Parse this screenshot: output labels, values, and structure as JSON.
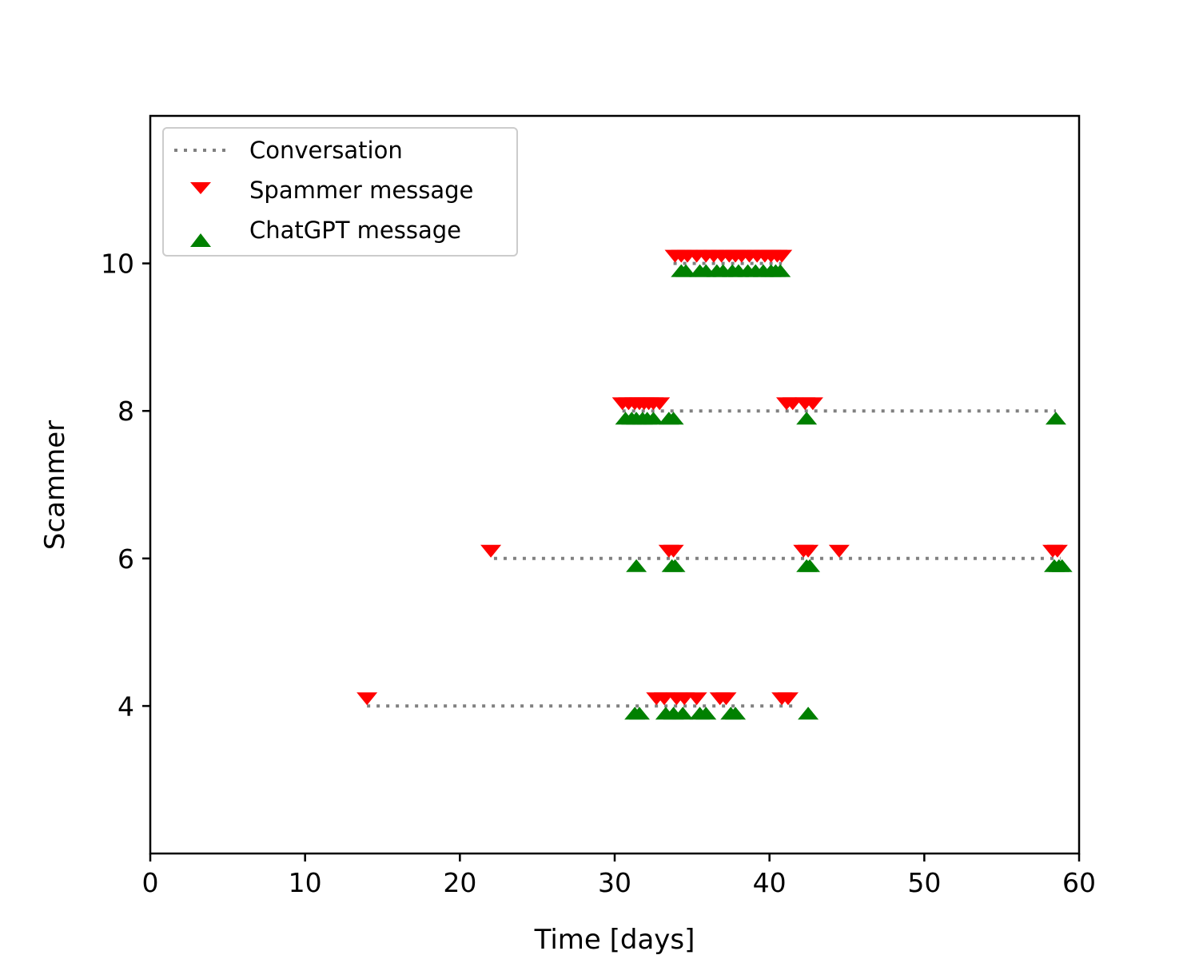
{
  "chart_data": {
    "type": "scatter",
    "xlabel": "Time [days]",
    "ylabel": "Scammer",
    "xlim": [
      0,
      60
    ],
    "ylim": [
      2,
      12
    ],
    "xticks": [
      0,
      10,
      20,
      30,
      40,
      50,
      60
    ],
    "yticks": [
      4,
      6,
      8,
      10
    ],
    "grid": false,
    "legend_position": "top-left",
    "legend": [
      {
        "label": "Conversation",
        "marker": "dotted-line",
        "color": "#808080"
      },
      {
        "label": "Spammer message",
        "marker": "triangle-down",
        "color": "#ff0000"
      },
      {
        "label": "ChatGPT message",
        "marker": "triangle-up",
        "color": "#008000"
      }
    ],
    "conversations": [
      {
        "scammer": 4,
        "start": 14.0,
        "end": 41.5
      },
      {
        "scammer": 6,
        "start": 22.2,
        "end": 58.8
      },
      {
        "scammer": 8,
        "start": 30.5,
        "end": 58.5
      },
      {
        "scammer": 10,
        "start": 33.8,
        "end": 40.8
      }
    ],
    "series": [
      {
        "name": "Spammer message",
        "color": "#ff0000",
        "points": [
          {
            "scammer": 4,
            "t": [
              14.0,
              32.7,
              33.2,
              34.0,
              34.5,
              35.3,
              36.8,
              37.2,
              40.8,
              41.2
            ]
          },
          {
            "scammer": 6,
            "t": [
              22.0,
              33.5,
              33.8,
              42.2,
              42.5,
              44.5,
              58.3,
              58.6
            ]
          },
          {
            "scammer": 8,
            "t": [
              30.5,
              30.9,
              31.3,
              31.6,
              31.9,
              32.2,
              32.5,
              32.9,
              41.1,
              41.5,
              42.3,
              42.8
            ]
          },
          {
            "scammer": 10,
            "t": [
              33.9,
              34.3,
              34.7,
              35.3,
              35.9,
              36.4,
              36.9,
              37.4,
              37.8,
              38.2,
              38.7,
              39.2,
              39.7,
              40.1,
              40.5,
              40.8
            ]
          }
        ]
      },
      {
        "name": "ChatGPT message",
        "color": "#008000",
        "points": [
          {
            "scammer": 4,
            "t": [
              31.3,
              31.6,
              33.3,
              33.8,
              34.4,
              35.5,
              35.9,
              37.5,
              37.8,
              42.5
            ]
          },
          {
            "scammer": 6,
            "t": [
              31.4,
              33.7,
              33.9,
              42.4,
              42.6,
              58.4,
              58.7,
              58.9
            ]
          },
          {
            "scammer": 8,
            "t": [
              30.7,
              31.1,
              31.4,
              31.8,
              32.1,
              32.5,
              33.5,
              33.8,
              42.4,
              58.5
            ]
          },
          {
            "scammer": 10,
            "t": [
              34.3,
              34.6,
              35.5,
              35.9,
              36.6,
              37.0,
              37.6,
              38.0,
              38.6,
              39.1,
              39.6,
              40.1,
              40.4,
              40.7
            ]
          }
        ]
      }
    ]
  }
}
